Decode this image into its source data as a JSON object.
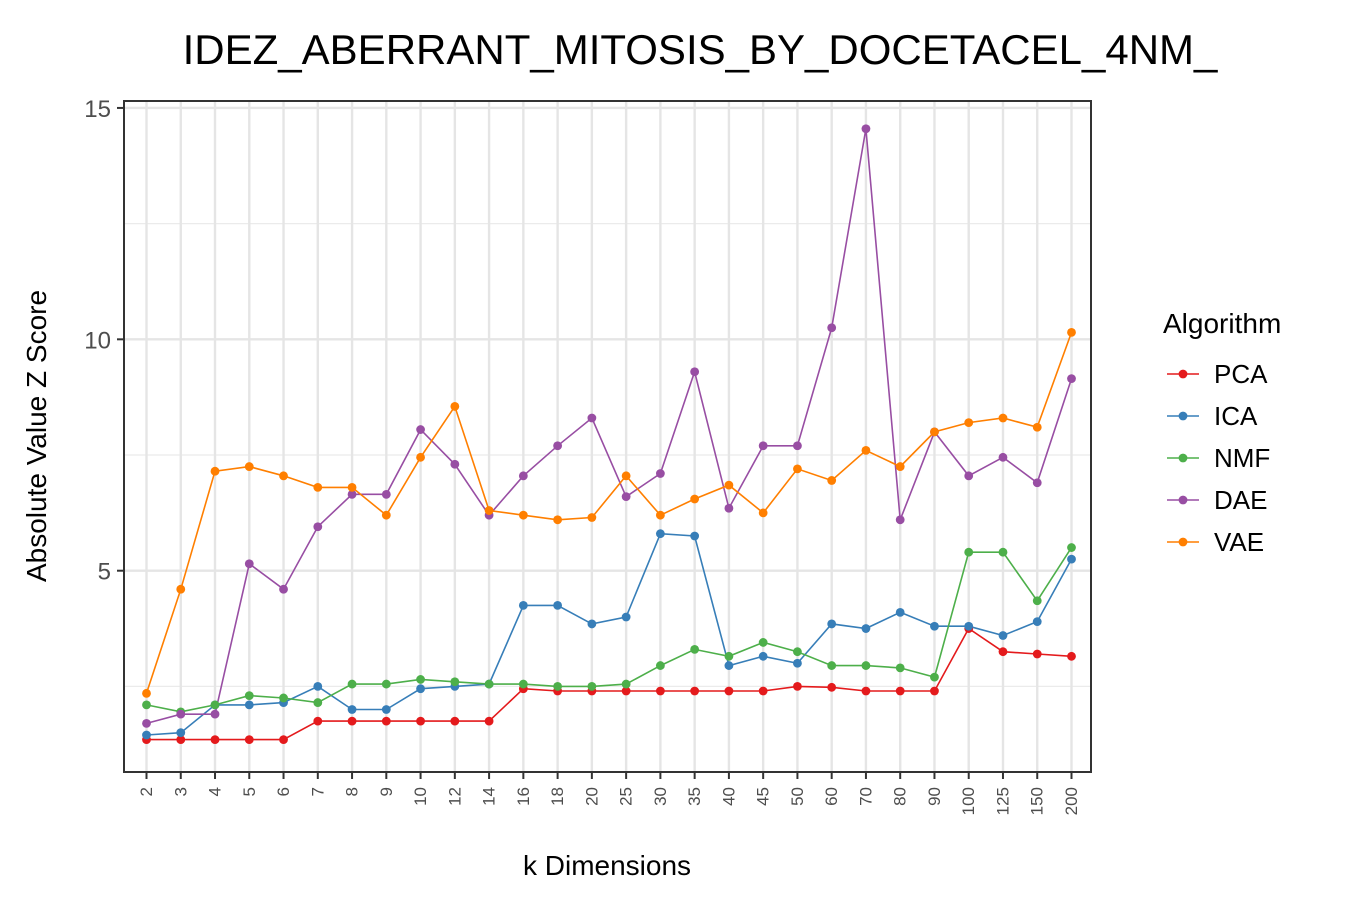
{
  "chart_data": {
    "type": "line",
    "title": "IDEZ_ABERRANT_MITOSIS_BY_DOCETACEL_4NM_",
    "xlabel": "k Dimensions",
    "ylabel": "Absolute Value Z Score",
    "categories": [
      "2",
      "3",
      "4",
      "5",
      "6",
      "7",
      "8",
      "9",
      "10",
      "12",
      "14",
      "16",
      "18",
      "20",
      "25",
      "30",
      "35",
      "40",
      "45",
      "50",
      "60",
      "70",
      "80",
      "90",
      "100",
      "125",
      "150",
      "200"
    ],
    "ylim": [
      0.65,
      15.15
    ],
    "yticks": [
      5,
      10,
      15
    ],
    "grid": true,
    "legend": {
      "title": "Algorithm",
      "placement": "right"
    },
    "series": [
      {
        "name": "PCA",
        "color": "#e41a1c",
        "values": [
          1.35,
          1.35,
          1.35,
          1.35,
          1.35,
          1.75,
          1.75,
          1.75,
          1.75,
          1.75,
          1.75,
          2.45,
          2.4,
          2.4,
          2.4,
          2.4,
          2.4,
          2.4,
          2.4,
          2.5,
          2.48,
          2.4,
          2.4,
          2.4,
          3.75,
          3.25,
          3.2,
          3.15
        ]
      },
      {
        "name": "ICA",
        "color": "#377eb8",
        "values": [
          1.45,
          1.5,
          2.1,
          2.1,
          2.15,
          2.5,
          2.0,
          2.0,
          2.45,
          2.5,
          2.55,
          4.25,
          4.25,
          3.85,
          4.0,
          5.8,
          5.75,
          2.95,
          3.15,
          3.0,
          3.85,
          3.75,
          4.1,
          3.8,
          3.8,
          3.6,
          3.9,
          5.25
        ]
      },
      {
        "name": "NMF",
        "color": "#4daf4a",
        "values": [
          2.1,
          1.95,
          2.1,
          2.3,
          2.25,
          2.15,
          2.55,
          2.55,
          2.65,
          2.6,
          2.55,
          2.55,
          2.5,
          2.5,
          2.55,
          2.95,
          3.3,
          3.15,
          3.45,
          3.25,
          2.95,
          2.95,
          2.9,
          2.7,
          5.4,
          5.4,
          4.35,
          5.5
        ]
      },
      {
        "name": "DAE",
        "color": "#984ea3",
        "values": [
          1.7,
          1.9,
          1.9,
          5.15,
          4.6,
          5.95,
          6.65,
          6.65,
          8.05,
          7.3,
          6.2,
          7.05,
          7.7,
          8.3,
          6.6,
          7.1,
          9.3,
          6.35,
          7.7,
          7.7,
          10.25,
          14.55,
          6.1,
          8.0,
          7.05,
          7.45,
          6.9,
          9.15
        ]
      },
      {
        "name": "VAE",
        "color": "#ff7f00",
        "values": [
          2.35,
          4.6,
          7.15,
          7.25,
          7.05,
          6.8,
          6.8,
          6.2,
          7.45,
          8.55,
          6.3,
          6.2,
          6.1,
          6.15,
          7.05,
          6.2,
          6.55,
          6.85,
          6.25,
          7.2,
          6.95,
          7.6,
          7.25,
          8.0,
          8.2,
          8.3,
          8.1,
          10.15
        ]
      }
    ]
  }
}
